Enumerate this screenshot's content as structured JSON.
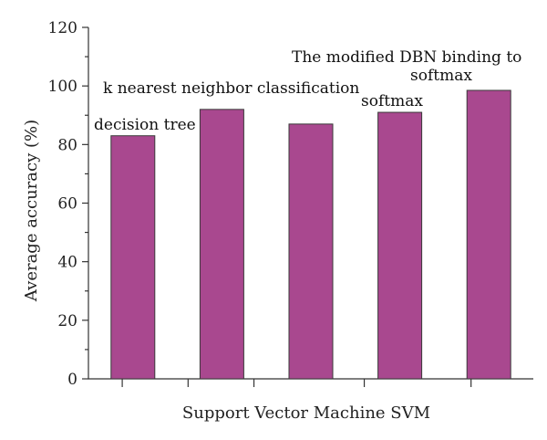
{
  "chart_data": {
    "type": "bar",
    "values": [
      83,
      92,
      87,
      91,
      98.5
    ],
    "annotations": [
      {
        "lines": [
          "decision tree"
        ],
        "bar": 0
      },
      {
        "lines": [
          "k nearest neighbor classification"
        ],
        "bar": 1
      },
      {
        "lines": [
          "softmax"
        ],
        "bar": 3
      },
      {
        "lines": [
          "The modified DBN binding to",
          "softmax"
        ],
        "bar": 4
      }
    ],
    "title": "",
    "xlabel": "Support Vector Machine SVM",
    "ylabel": "Average accuracy (%)",
    "ylim": [
      0,
      120
    ],
    "yticks": [
      0,
      20,
      40,
      60,
      80,
      100,
      120
    ],
    "bar_color": "#a9488f",
    "grid": false
  }
}
